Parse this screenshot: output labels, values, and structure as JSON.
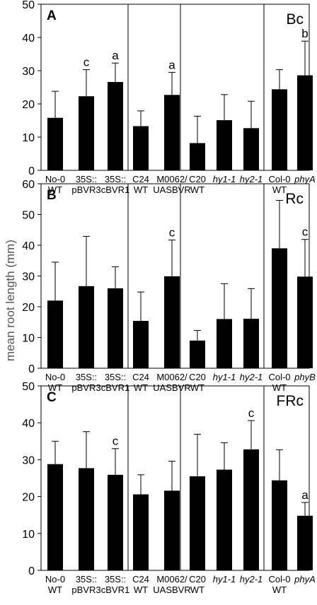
{
  "ylabel": "mean root length (mm)",
  "colors": {
    "bar": "#000000",
    "axis": "#000000",
    "text": "#000000",
    "ylabel": "#555555"
  },
  "chart_data": [
    {
      "type": "bar",
      "panel": "A",
      "condition": "Bc",
      "ylim": [
        0,
        50
      ],
      "yticks": [
        0,
        10,
        20,
        30,
        40,
        50
      ],
      "groups": [
        {
          "categories": [
            {
              "line1": "No-0",
              "line2": "WT",
              "italic": false,
              "value": 15.8,
              "err": 8.0,
              "letter": ""
            },
            {
              "line1": "35S::",
              "line2": "pBVR3",
              "italic": false,
              "value": 22.3,
              "err": 8.0,
              "letter": "c"
            },
            {
              "line1": "35S::",
              "line2": "cBVR1",
              "italic": false,
              "value": 26.6,
              "err": 5.7,
              "letter": "a"
            }
          ]
        },
        {
          "categories": [
            {
              "line1": "C24",
              "line2": "WT",
              "italic": false,
              "value": 13.3,
              "err": 4.6,
              "letter": ""
            },
            {
              "line1": "M0062/",
              "line2": "UASBVR",
              "italic": false,
              "value": 22.7,
              "err": 6.8,
              "letter": "a"
            }
          ]
        },
        {
          "categories": [
            {
              "line1": "C20",
              "line2": "WT",
              "italic": false,
              "value": 8.2,
              "err": 8.1,
              "letter": ""
            },
            {
              "line1": "hy1-1",
              "line2": "",
              "italic": true,
              "value": 15.1,
              "err": 7.7,
              "letter": ""
            },
            {
              "line1": "hy2-1",
              "line2": "",
              "italic": true,
              "value": 12.7,
              "err": 8.1,
              "letter": ""
            }
          ]
        },
        {
          "categories": [
            {
              "line1": "Col-0",
              "line2": "WT",
              "italic": false,
              "value": 24.4,
              "err": 5.9,
              "letter": ""
            },
            {
              "line1": "phyA",
              "line2": "",
              "italic": true,
              "value": 28.6,
              "err": 10.3,
              "letter": "b"
            }
          ]
        }
      ]
    },
    {
      "type": "bar",
      "panel": "B",
      "condition": "Rc",
      "ylim": [
        0,
        60
      ],
      "yticks": [
        0,
        10,
        20,
        30,
        40,
        50,
        60
      ],
      "groups": [
        {
          "categories": [
            {
              "line1": "No-0",
              "line2": "WT",
              "italic": false,
              "value": 22.0,
              "err": 12.5,
              "letter": ""
            },
            {
              "line1": "35S::",
              "line2": "pBVR3",
              "italic": false,
              "value": 26.7,
              "err": 16.2,
              "letter": ""
            },
            {
              "line1": "35S::",
              "line2": "cBVR1",
              "italic": false,
              "value": 26.0,
              "err": 7.0,
              "letter": ""
            }
          ]
        },
        {
          "categories": [
            {
              "line1": "C24",
              "line2": "WT",
              "italic": false,
              "value": 15.4,
              "err": 9.4,
              "letter": ""
            },
            {
              "line1": "M0062/",
              "line2": "UASBVR",
              "italic": false,
              "value": 29.9,
              "err": 11.8,
              "letter": "c"
            }
          ]
        },
        {
          "categories": [
            {
              "line1": "C20",
              "line2": "WT",
              "italic": false,
              "value": 9.0,
              "err": 3.3,
              "letter": ""
            },
            {
              "line1": "hy1-1",
              "line2": "",
              "italic": true,
              "value": 16.0,
              "err": 11.5,
              "letter": ""
            },
            {
              "line1": "hy2-1",
              "line2": "",
              "italic": true,
              "value": 16.1,
              "err": 9.8,
              "letter": ""
            }
          ]
        },
        {
          "categories": [
            {
              "line1": "Col-0",
              "line2": "WT",
              "italic": false,
              "value": 39.0,
              "err": 15.6,
              "letter": ""
            },
            {
              "line1": "phyB",
              "line2": "",
              "italic": true,
              "value": 29.8,
              "err": 12.1,
              "letter": "c"
            }
          ]
        }
      ]
    },
    {
      "type": "bar",
      "panel": "C",
      "condition": "FRc",
      "ylim": [
        0,
        50
      ],
      "yticks": [
        0,
        10,
        20,
        30,
        40,
        50
      ],
      "groups": [
        {
          "categories": [
            {
              "line1": "No-0",
              "line2": "WT",
              "italic": false,
              "value": 28.8,
              "err": 6.2,
              "letter": ""
            },
            {
              "line1": "35S::",
              "line2": "pBVR3",
              "italic": false,
              "value": 27.7,
              "err": 9.9,
              "letter": ""
            },
            {
              "line1": "35S::",
              "line2": "cBVR1",
              "italic": false,
              "value": 25.9,
              "err": 7.1,
              "letter": "c"
            }
          ]
        },
        {
          "categories": [
            {
              "line1": "C24",
              "line2": "WT",
              "italic": false,
              "value": 20.6,
              "err": 5.3,
              "letter": ""
            },
            {
              "line1": "M0062/",
              "line2": "UASBVR",
              "italic": false,
              "value": 21.6,
              "err": 8.0,
              "letter": ""
            }
          ]
        },
        {
          "categories": [
            {
              "line1": "C20",
              "line2": "WT",
              "italic": false,
              "value": 25.5,
              "err": 11.4,
              "letter": ""
            },
            {
              "line1": "hy1-1",
              "line2": "",
              "italic": true,
              "value": 27.3,
              "err": 7.3,
              "letter": ""
            },
            {
              "line1": "hy2-1",
              "line2": "",
              "italic": true,
              "value": 32.8,
              "err": 7.8,
              "letter": "c"
            }
          ]
        },
        {
          "categories": [
            {
              "line1": "Col-0",
              "line2": "WT",
              "italic": false,
              "value": 24.4,
              "err": 8.3,
              "letter": ""
            },
            {
              "line1": "phyA",
              "line2": "",
              "italic": true,
              "value": 14.8,
              "err": 3.6,
              "letter": "a"
            }
          ]
        }
      ]
    }
  ]
}
